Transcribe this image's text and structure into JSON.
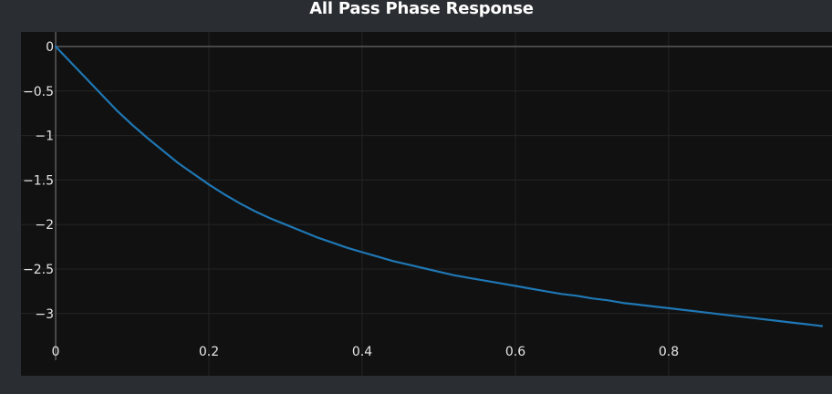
{
  "chart_data": {
    "type": "line",
    "title": "All Pass Phase Response",
    "xlabel": "",
    "ylabel": "",
    "xlim": [
      0,
      1
    ],
    "ylim": [
      -3.3,
      0.05
    ],
    "x_ticks": [
      0,
      0.2,
      0.4,
      0.6,
      0.8
    ],
    "y_ticks": [
      0,
      -0.5,
      -1,
      -1.5,
      -2,
      -2.5,
      -3
    ],
    "x_tick_labels": [
      "0",
      "0.2",
      "0.4",
      "0.6",
      "0.8"
    ],
    "y_tick_labels": [
      "0",
      "−0.5",
      "−1",
      "−1.5",
      "−2",
      "−2.5",
      "−3"
    ],
    "grid": true,
    "legend": "none",
    "series": [
      {
        "color": "#1f77b4",
        "x": [
          0,
          0.02,
          0.04,
          0.06,
          0.08,
          0.1,
          0.12,
          0.14,
          0.16,
          0.18,
          0.2,
          0.22,
          0.24,
          0.26,
          0.28,
          0.3,
          0.32,
          0.34,
          0.36,
          0.38,
          0.4,
          0.42,
          0.44,
          0.46,
          0.48,
          0.5,
          0.52,
          0.54,
          0.56,
          0.58,
          0.6,
          0.62,
          0.64,
          0.66,
          0.68,
          0.7,
          0.72,
          0.74,
          0.76,
          0.78,
          0.8,
          0.82,
          0.84,
          0.86,
          0.88,
          0.9,
          0.92,
          0.94,
          0.96,
          0.98,
          1.0
        ],
        "y": [
          0,
          -0.18,
          -0.36,
          -0.54,
          -0.72,
          -0.88,
          -1.03,
          -1.17,
          -1.31,
          -1.43,
          -1.55,
          -1.66,
          -1.76,
          -1.85,
          -1.93,
          -2.0,
          -2.07,
          -2.14,
          -2.2,
          -2.26,
          -2.31,
          -2.36,
          -2.41,
          -2.45,
          -2.49,
          -2.53,
          -2.57,
          -2.6,
          -2.63,
          -2.66,
          -2.69,
          -2.72,
          -2.75,
          -2.78,
          -2.8,
          -2.83,
          -2.85,
          -2.88,
          -2.9,
          -2.92,
          -2.94,
          -2.96,
          -2.98,
          -3.0,
          -3.02,
          -3.04,
          -3.06,
          -3.08,
          -3.1,
          -3.12,
          -3.14
        ]
      }
    ]
  },
  "colors": {
    "page_background": "#2a2d32",
    "plot_background": "#111111",
    "grid": "#242424",
    "zero_line": "#5a5a5a",
    "line": "#1f77b4",
    "text": "#e6e6e6",
    "title": "#ffffff"
  }
}
